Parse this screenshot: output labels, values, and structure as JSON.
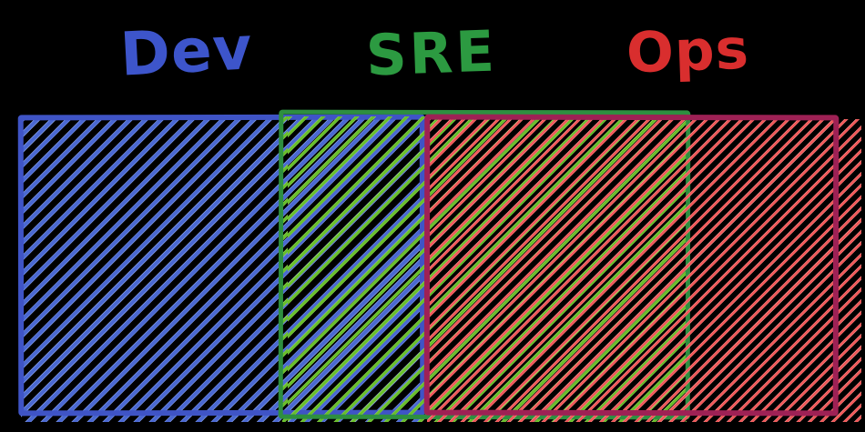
{
  "diagram": {
    "type": "overlapping-sets",
    "background": "#000000",
    "labels": {
      "dev": {
        "text": "Dev",
        "color": "#3d55cb"
      },
      "sre": {
        "text": "SRE",
        "color": "#2c9a41"
      },
      "ops": {
        "text": "Ops",
        "color": "#d92e2e"
      }
    },
    "sets": [
      {
        "id": "dev",
        "label": "Dev",
        "stroke_color": "#3f54c6",
        "hatch_color": "#4a68d1",
        "hatch_style": "diagonal"
      },
      {
        "id": "sre",
        "label": "SRE",
        "stroke_color": "#2e8f40",
        "hatch_color": "#67be2b",
        "hatch_style": "diagonal"
      },
      {
        "id": "ops",
        "label": "Ops",
        "stroke_color": "#9e2155",
        "hatch_color": "#ef5757",
        "hatch_style": "diagonal"
      }
    ],
    "overlaps": [
      {
        "between": [
          "Dev",
          "SRE"
        ]
      },
      {
        "between": [
          "SRE",
          "Ops"
        ]
      }
    ]
  }
}
